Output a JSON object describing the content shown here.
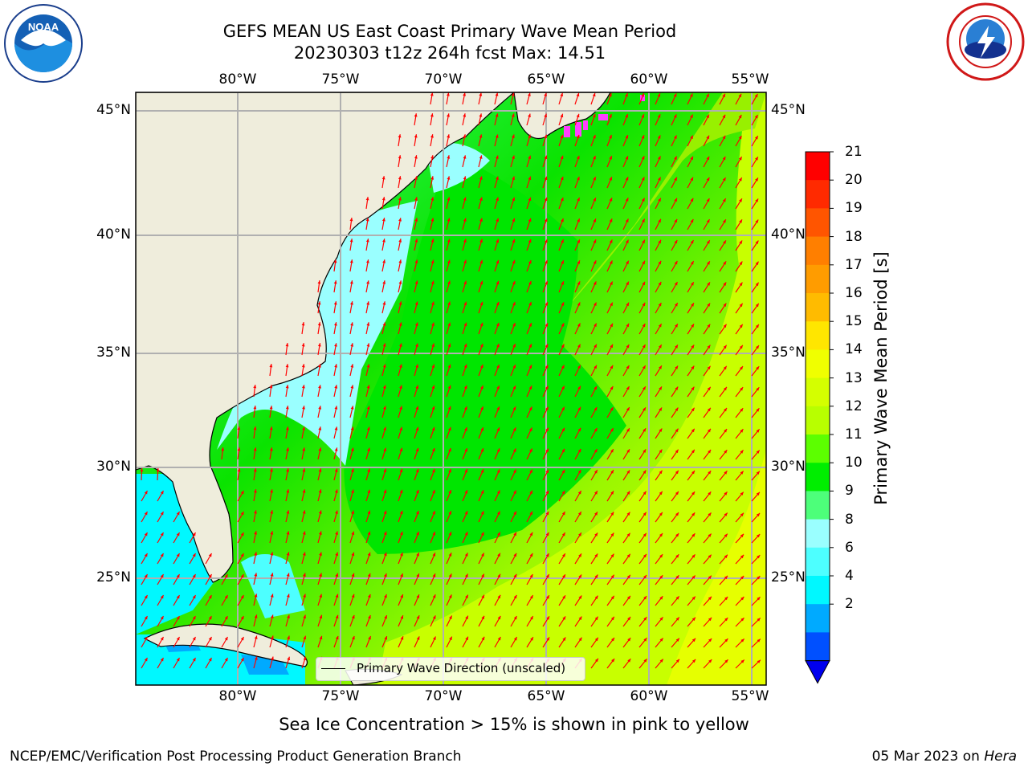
{
  "header": {
    "title_line1": "GEFS MEAN US East Coast Primary Wave Mean Period",
    "title_line2": "20230303 t12z 264h fcst   Max: 14.51"
  },
  "logos": {
    "left": "noaa-logo",
    "right": "nws-logo"
  },
  "axes": {
    "lon_labels": [
      "80°W",
      "75°W",
      "70°W",
      "65°W",
      "60°W",
      "55°W"
    ],
    "lat_labels": [
      "45°N",
      "40°N",
      "35°N",
      "30°N",
      "25°N"
    ]
  },
  "colorbar": {
    "title": "Primary Wave Mean Period [s]",
    "ticks": [
      "21",
      "20",
      "19",
      "18",
      "17",
      "16",
      "15",
      "14",
      "13",
      "12",
      "11",
      "10",
      "9",
      "8",
      "6",
      "4",
      "2"
    ],
    "colors": [
      "#ff0000",
      "#ff2a00",
      "#ff5500",
      "#ff7f00",
      "#ff9c00",
      "#ffbb00",
      "#ffe600",
      "#f0ff00",
      "#d4ff00",
      "#b8ff00",
      "#5cff00",
      "#00ee00",
      "#4dff7a",
      "#9affff",
      "#4dffff",
      "#00f8ff",
      "#00aaff",
      "#0050ff"
    ],
    "extend_color": "#0000ee"
  },
  "legend": {
    "label": "Primary Wave Direction (unscaled)"
  },
  "subtitle": "Sea Ice Concentration > 15% is shown in pink to yellow",
  "footer": {
    "left": "NCEP/EMC/Verification Post Processing Product Generation Branch",
    "date": "05 Mar 2023 on",
    "machine": "Hera"
  },
  "colors": {
    "land": "#efeddc",
    "arrow": "#ff0000",
    "grid": "#b0b0b0"
  }
}
